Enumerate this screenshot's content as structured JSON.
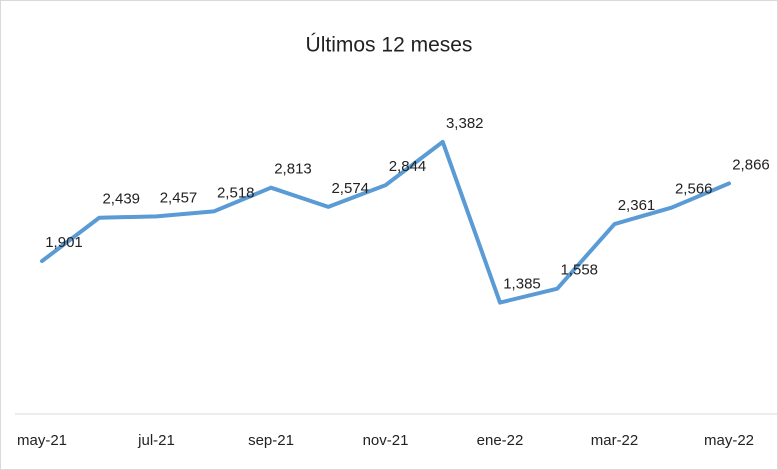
{
  "chart_data": {
    "type": "line",
    "title": "Últimos 12 meses",
    "categories": [
      "may-21",
      null,
      "jul-21",
      null,
      "sep-21",
      null,
      "nov-21",
      null,
      "ene-22",
      null,
      "mar-22",
      null,
      "may-22"
    ],
    "series": [
      {
        "color": "#5b9bd5",
        "values": [
          1901,
          2439,
          2457,
          2518,
          2813,
          2574,
          2844,
          3382,
          1385,
          1558,
          2361,
          2566,
          2866
        ],
        "value_labels": [
          "1,901",
          "2,439",
          "2,457",
          "2,518",
          "2,813",
          "2,574",
          "2,844",
          "3,382",
          "1,385",
          "1,558",
          "2,361",
          "2,566",
          "2,866"
        ]
      }
    ],
    "ylim": [
      0,
      4400
    ]
  }
}
